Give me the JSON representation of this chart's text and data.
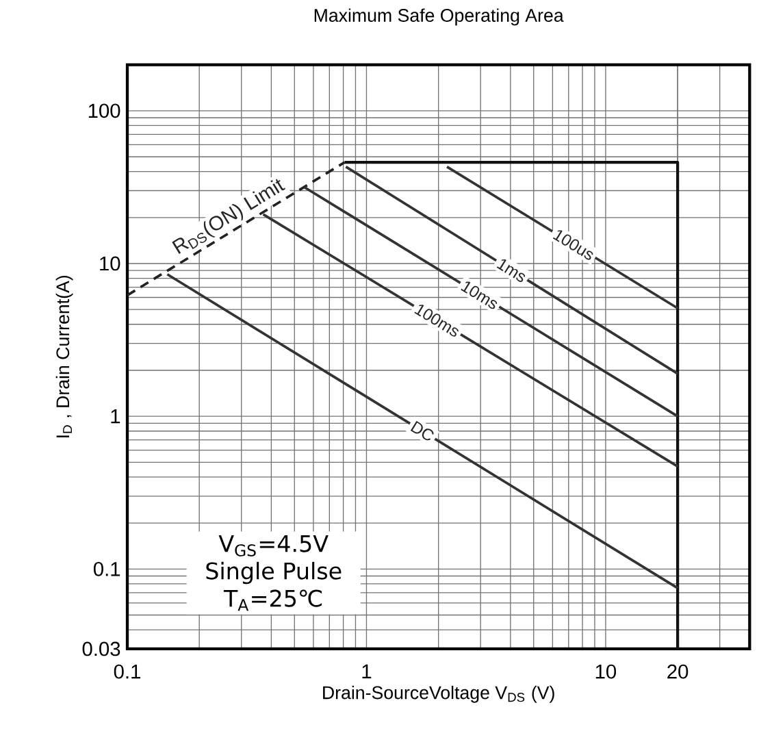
{
  "chart_data": {
    "type": "line",
    "title": "Maximum Safe Operating Area",
    "xlabel": "Drain-SourceVoltage   V$_{DS}$   (V)",
    "ylabel": "I$_{D}$ , Drain Current(A)",
    "log": "xy",
    "grid": true,
    "xlim": [
      0.1,
      40
    ],
    "ylim": [
      0.03,
      200
    ],
    "xticks": [
      0.1,
      1,
      10,
      20
    ],
    "yticks": [
      0.03,
      0.1,
      1,
      10,
      100
    ],
    "series": [
      {
        "name": "R$_{DS}$(ON) Limit",
        "color": "#222222",
        "line_style": "dashed",
        "x": [
          0.1,
          0.81
        ],
        "values": [
          6.2,
          46
        ]
      },
      {
        "color": "#111111",
        "x": [
          0.81,
          20,
          20
        ],
        "values": [
          46,
          46,
          0.03
        ]
      },
      {
        "name": "100us",
        "color": "#333333",
        "x": [
          2.17,
          20
        ],
        "values": [
          43,
          5.1
        ]
      },
      {
        "name": "1ms",
        "color": "#333333",
        "x": [
          0.82,
          20
        ],
        "values": [
          43,
          1.9
        ]
      },
      {
        "name": "10ms",
        "color": "#333333",
        "x": [
          0.55,
          20
        ],
        "values": [
          31.6,
          1.0
        ]
      },
      {
        "name": "100ms",
        "color": "#333333",
        "x": [
          0.37,
          20
        ],
        "values": [
          21,
          0.47
        ]
      },
      {
        "name": "DC",
        "color": "#333333",
        "x": [
          0.147,
          20
        ],
        "values": [
          8.5,
          0.075
        ]
      }
    ],
    "annotations": [
      "V$_{GS}$=4.5V",
      "Single Pulse",
      "T$_{A}$=25℃"
    ]
  }
}
